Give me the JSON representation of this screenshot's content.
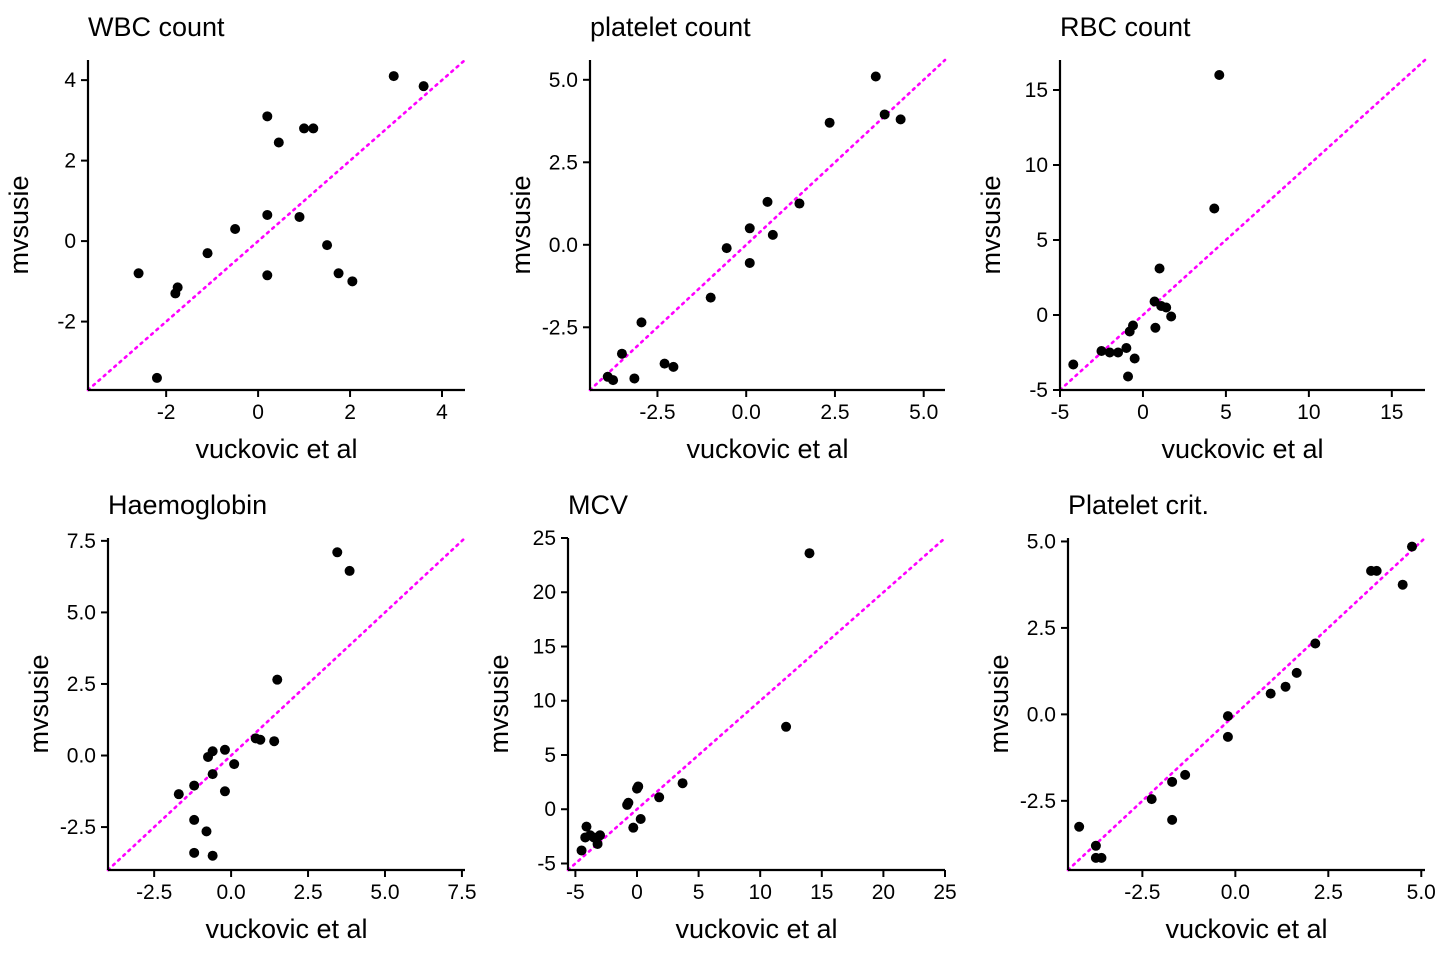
{
  "colors": {
    "points": "#000000",
    "identity_line": "#ff00ff",
    "axis": "#000000"
  },
  "chart_data": [
    {
      "type": "scatter",
      "title": "WBC count",
      "xlabel": "vuckovic et al",
      "ylabel": "mvsusie",
      "xlim": [
        -3.7,
        4.5
      ],
      "ylim": [
        -3.7,
        4.5
      ],
      "xticks": [
        -2,
        0,
        2,
        4
      ],
      "xticklabels": [
        "-2",
        "0",
        "2",
        "4"
      ],
      "yticks": [
        -2,
        0,
        2,
        4
      ],
      "yticklabels": [
        "-2",
        "0",
        "2",
        "4"
      ],
      "identity_line": true,
      "points": [
        {
          "x": -2.6,
          "y": -0.8
        },
        {
          "x": -1.8,
          "y": -1.3
        },
        {
          "x": -1.75,
          "y": -1.15
        },
        {
          "x": -2.2,
          "y": -3.4
        },
        {
          "x": -1.1,
          "y": -0.3
        },
        {
          "x": -0.5,
          "y": 0.3
        },
        {
          "x": 0.2,
          "y": 3.1
        },
        {
          "x": 0.2,
          "y": 0.65
        },
        {
          "x": 0.2,
          "y": -0.85
        },
        {
          "x": 0.45,
          "y": 2.45
        },
        {
          "x": 0.9,
          "y": 0.6
        },
        {
          "x": 1.0,
          "y": 2.8
        },
        {
          "x": 1.2,
          "y": 2.8
        },
        {
          "x": 1.5,
          "y": -0.1
        },
        {
          "x": 1.75,
          "y": -0.8
        },
        {
          "x": 2.05,
          "y": -1.0
        },
        {
          "x": 2.95,
          "y": 4.1
        },
        {
          "x": 3.6,
          "y": 3.85
        }
      ]
    },
    {
      "type": "scatter",
      "title": "platelet count",
      "xlabel": "vuckovic et al",
      "ylabel": "mvsusie",
      "xlim": [
        -4.4,
        5.6
      ],
      "ylim": [
        -4.4,
        5.6
      ],
      "xticks": [
        -2.5,
        0,
        2.5,
        5
      ],
      "xticklabels": [
        "-2.5",
        "0.0",
        "2.5",
        "5.0"
      ],
      "yticks": [
        -2.5,
        0,
        2.5,
        5
      ],
      "yticklabels": [
        "-2.5",
        "0.0",
        "2.5",
        "5.0"
      ],
      "identity_line": true,
      "points": [
        {
          "x": -3.9,
          "y": -4.0
        },
        {
          "x": -3.75,
          "y": -4.1
        },
        {
          "x": -3.15,
          "y": -4.05
        },
        {
          "x": -3.5,
          "y": -3.3
        },
        {
          "x": -2.95,
          "y": -2.35
        },
        {
          "x": -2.3,
          "y": -3.6
        },
        {
          "x": -2.05,
          "y": -3.7
        },
        {
          "x": -1.0,
          "y": -1.6
        },
        {
          "x": -0.55,
          "y": -0.1
        },
        {
          "x": 0.1,
          "y": 0.5
        },
        {
          "x": 0.1,
          "y": -0.55
        },
        {
          "x": 0.6,
          "y": 1.3
        },
        {
          "x": 0.75,
          "y": 0.3
        },
        {
          "x": 1.5,
          "y": 1.25
        },
        {
          "x": 2.35,
          "y": 3.7
        },
        {
          "x": 3.65,
          "y": 5.1
        },
        {
          "x": 3.9,
          "y": 3.95
        },
        {
          "x": 4.35,
          "y": 3.8
        }
      ]
    },
    {
      "type": "scatter",
      "title": "RBC count",
      "xlabel": "vuckovic et al",
      "ylabel": "mvsusie",
      "xlim": [
        -5,
        17
      ],
      "ylim": [
        -5,
        17
      ],
      "xticks": [
        -5,
        0,
        5,
        10,
        15
      ],
      "xticklabels": [
        "-5",
        "0",
        "5",
        "10",
        "15"
      ],
      "yticks": [
        -5,
        0,
        5,
        10,
        15
      ],
      "yticklabels": [
        "-5",
        "0",
        "5",
        "10",
        "15"
      ],
      "identity_line": true,
      "points": [
        {
          "x": -4.2,
          "y": -3.3
        },
        {
          "x": -2.5,
          "y": -2.4
        },
        {
          "x": -2.0,
          "y": -2.5
        },
        {
          "x": -1.5,
          "y": -2.5
        },
        {
          "x": -1.0,
          "y": -2.2
        },
        {
          "x": -0.9,
          "y": -4.1
        },
        {
          "x": -0.8,
          "y": -1.1
        },
        {
          "x": -0.6,
          "y": -0.7
        },
        {
          "x": -0.5,
          "y": -2.9
        },
        {
          "x": 0.7,
          "y": 0.9
        },
        {
          "x": 0.75,
          "y": -0.85
        },
        {
          "x": 1.0,
          "y": 3.1
        },
        {
          "x": 1.1,
          "y": 0.6
        },
        {
          "x": 1.4,
          "y": 0.5
        },
        {
          "x": 1.7,
          "y": -0.1
        },
        {
          "x": 4.3,
          "y": 7.1
        },
        {
          "x": 4.6,
          "y": 16.0
        }
      ]
    },
    {
      "type": "scatter",
      "title": "Haemoglobin",
      "xlabel": "vuckovic et al",
      "ylabel": "mvsusie",
      "xlim": [
        -4,
        7.6
      ],
      "ylim": [
        -4,
        7.6
      ],
      "xticks": [
        -2.5,
        0,
        2.5,
        5,
        7.5
      ],
      "xticklabels": [
        "-2.5",
        "0.0",
        "2.5",
        "5.0",
        "7.5"
      ],
      "yticks": [
        -2.5,
        0,
        2.5,
        5,
        7.5
      ],
      "yticklabels": [
        "-2.5",
        "0.0",
        "2.5",
        "5.0",
        "7.5"
      ],
      "identity_line": true,
      "points": [
        {
          "x": -1.7,
          "y": -1.35
        },
        {
          "x": -1.2,
          "y": -1.05
        },
        {
          "x": -1.2,
          "y": -2.25
        },
        {
          "x": -1.2,
          "y": -3.4
        },
        {
          "x": -0.75,
          "y": -0.05
        },
        {
          "x": -0.8,
          "y": -2.65
        },
        {
          "x": -0.6,
          "y": 0.15
        },
        {
          "x": -0.6,
          "y": -0.65
        },
        {
          "x": -0.6,
          "y": -3.5
        },
        {
          "x": -0.2,
          "y": 0.2
        },
        {
          "x": -0.2,
          "y": -1.25
        },
        {
          "x": 0.1,
          "y": -0.3
        },
        {
          "x": 0.8,
          "y": 0.6
        },
        {
          "x": 0.95,
          "y": 0.55
        },
        {
          "x": 1.4,
          "y": 0.5
        },
        {
          "x": 1.5,
          "y": 2.65
        },
        {
          "x": 3.45,
          "y": 7.1
        },
        {
          "x": 3.85,
          "y": 6.45
        }
      ]
    },
    {
      "type": "scatter",
      "title": "MCV",
      "xlabel": "vuckovic et al",
      "ylabel": "mvsusie",
      "xlim": [
        -5.6,
        25
      ],
      "ylim": [
        -5.6,
        25
      ],
      "xticks": [
        -5,
        0,
        5,
        10,
        15,
        20,
        25
      ],
      "xticklabels": [
        "-5",
        "0",
        "5",
        "10",
        "15",
        "20",
        "25"
      ],
      "yticks": [
        -5,
        0,
        5,
        10,
        15,
        20,
        25
      ],
      "yticklabels": [
        "-5",
        "0",
        "5",
        "10",
        "15",
        "20",
        "25"
      ],
      "identity_line": true,
      "points": [
        {
          "x": -4.5,
          "y": -3.8
        },
        {
          "x": -4.1,
          "y": -1.6
        },
        {
          "x": -4.2,
          "y": -2.6
        },
        {
          "x": -3.8,
          "y": -2.4
        },
        {
          "x": -3.5,
          "y": -2.6
        },
        {
          "x": -3.2,
          "y": -3.2
        },
        {
          "x": -3.0,
          "y": -2.4
        },
        {
          "x": -0.8,
          "y": 0.4
        },
        {
          "x": -0.7,
          "y": 0.6
        },
        {
          "x": -0.3,
          "y": -1.7
        },
        {
          "x": 0.0,
          "y": 1.9
        },
        {
          "x": 0.1,
          "y": 2.1
        },
        {
          "x": 0.3,
          "y": -0.9
        },
        {
          "x": 1.8,
          "y": 1.1
        },
        {
          "x": 3.7,
          "y": 2.4
        },
        {
          "x": 12.1,
          "y": 7.6
        },
        {
          "x": 14.0,
          "y": 23.6
        }
      ]
    },
    {
      "type": "scatter",
      "title": "Platelet crit.",
      "xlabel": "vuckovic et al",
      "ylabel": "mvsusie",
      "xlim": [
        -4.5,
        5.1
      ],
      "ylim": [
        -4.5,
        5.1
      ],
      "xticks": [
        -2.5,
        0,
        2.5,
        5
      ],
      "xticklabels": [
        "-2.5",
        "0.0",
        "2.5",
        "5.0"
      ],
      "yticks": [
        -2.5,
        0,
        2.5,
        5
      ],
      "yticklabels": [
        "-2.5",
        "0.0",
        "2.5",
        "5.0"
      ],
      "identity_line": true,
      "points": [
        {
          "x": -4.2,
          "y": -3.25
        },
        {
          "x": -3.75,
          "y": -3.8
        },
        {
          "x": -3.75,
          "y": -4.15
        },
        {
          "x": -3.6,
          "y": -4.15
        },
        {
          "x": -2.25,
          "y": -2.45
        },
        {
          "x": -1.7,
          "y": -1.95
        },
        {
          "x": -1.7,
          "y": -3.05
        },
        {
          "x": -1.35,
          "y": -1.75
        },
        {
          "x": -0.2,
          "y": -0.05
        },
        {
          "x": -0.2,
          "y": -0.65
        },
        {
          "x": 0.95,
          "y": 0.6
        },
        {
          "x": 1.35,
          "y": 0.8
        },
        {
          "x": 1.65,
          "y": 1.2
        },
        {
          "x": 2.15,
          "y": 2.05
        },
        {
          "x": 3.65,
          "y": 4.15
        },
        {
          "x": 3.8,
          "y": 4.15
        },
        {
          "x": 4.5,
          "y": 3.75
        },
        {
          "x": 4.75,
          "y": 4.85
        }
      ]
    }
  ]
}
